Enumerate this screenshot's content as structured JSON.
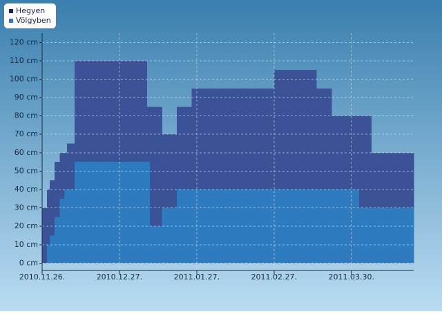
{
  "chart_data": {
    "type": "step-area",
    "series": [
      {
        "name": "Hegyen",
        "color": "#3b5396",
        "x": [
          "2010-11-26",
          "2010-11-28",
          "2010-11-29",
          "2010-12-01",
          "2010-12-03",
          "2010-12-06",
          "2010-12-09",
          "2011-01-07",
          "2011-01-13",
          "2011-01-19",
          "2011-01-25",
          "2011-02-27",
          "2011-03-16",
          "2011-03-22",
          "2011-04-07"
        ],
        "values": [
          30,
          40,
          45,
          55,
          60,
          65,
          110,
          85,
          70,
          85,
          95,
          105,
          95,
          80,
          60
        ]
      },
      {
        "name": "Völgyben",
        "color": "#2e7bbf",
        "x": [
          "2010-11-26",
          "2010-11-28",
          "2010-11-29",
          "2010-12-01",
          "2010-12-03",
          "2010-12-05",
          "2010-12-09",
          "2011-01-08",
          "2011-01-13",
          "2011-01-19",
          "2011-04-02"
        ],
        "values": [
          0,
          10,
          15,
          25,
          35,
          40,
          55,
          20,
          30,
          40,
          30
        ]
      }
    ],
    "xlim": [
      "2010-11-26",
      "2011-04-24"
    ],
    "xticks": [
      {
        "value": "2010-11-26",
        "label": "2010.11.26."
      },
      {
        "value": "2010-12-27",
        "label": "2010.12.27."
      },
      {
        "value": "2011-01-27",
        "label": "2011.01.27."
      },
      {
        "value": "2011-02-27",
        "label": "2011.02.27."
      },
      {
        "value": "2011-03-30",
        "label": "2011.03.30."
      }
    ],
    "ylim": [
      -4,
      125
    ],
    "yticks": [
      {
        "value": 0,
        "label": "0 cm"
      },
      {
        "value": 10,
        "label": "10 cm"
      },
      {
        "value": 20,
        "label": "20 cm"
      },
      {
        "value": 30,
        "label": "30 cm"
      },
      {
        "value": 40,
        "label": "40 cm"
      },
      {
        "value": 50,
        "label": "50 cm"
      },
      {
        "value": 60,
        "label": "60 cm"
      },
      {
        "value": 70,
        "label": "70 cm"
      },
      {
        "value": 80,
        "label": "80 cm"
      },
      {
        "value": 90,
        "label": "90 cm"
      },
      {
        "value": 100,
        "label": "100 cm"
      },
      {
        "value": 110,
        "label": "110 cm"
      },
      {
        "value": 120,
        "label": "120 cm"
      }
    ],
    "grid": true
  }
}
